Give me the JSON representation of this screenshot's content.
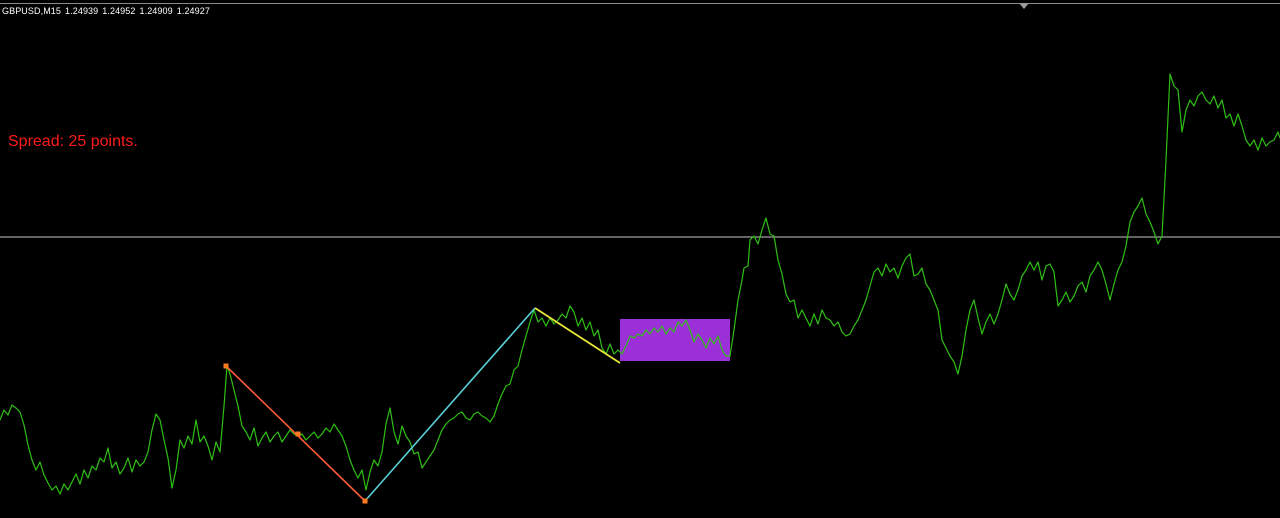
{
  "chart_header": {
    "symbol_timeframe": "GBPUSD,M15",
    "open": "1.24939",
    "high": "1.24952",
    "low": "1.24909",
    "close": "1.24927"
  },
  "spread_label": "Spread: 25 points.",
  "colors": {
    "background": "#000000",
    "price_line": "#2fbf14",
    "bid_line": "#c8c8c8",
    "leg_down": "#ff5a3a",
    "leg_up": "#5ad0d8",
    "leg_pullback": "#e8e83a",
    "range_box": "#9b30d9",
    "spread_text": "#ff1a1a",
    "pivot_marker": "#ff7a20"
  },
  "drawings": [
    {
      "kind": "down-leg",
      "color": "leg_down"
    },
    {
      "kind": "up-leg",
      "color": "leg_up"
    },
    {
      "kind": "pullback-leg",
      "color": "leg_pullback"
    },
    {
      "kind": "consolidation-box",
      "color": "range_box"
    }
  ]
}
